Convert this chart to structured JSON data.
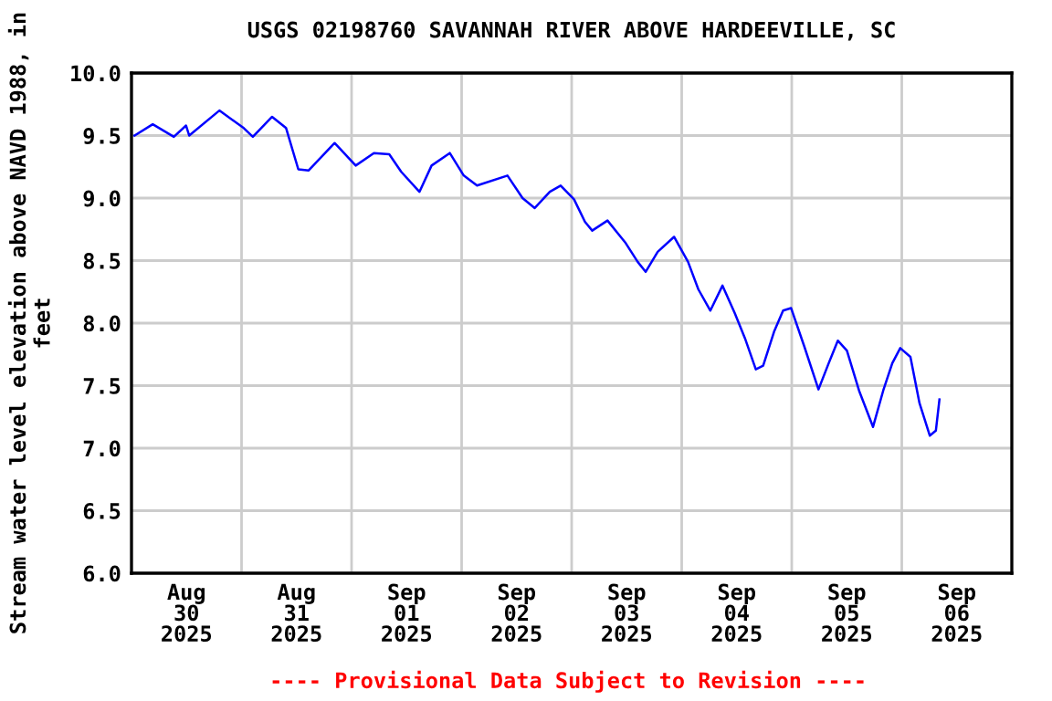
{
  "chart_data": {
    "type": "line",
    "title": "USGS 02198760 SAVANNAH RIVER ABOVE HARDEEVILLE, SC",
    "ylabel": "Stream water level elevation above NAVD 1988, in feet",
    "annotations": [
      "---- Provisional Data Subject to Revision ----"
    ],
    "x": [
      "2025-08-30T00:40",
      "2025-08-30T04:38",
      "2025-08-30T09:14",
      "2025-08-30T11:54",
      "2025-08-30T12:35",
      "2025-08-30T19:10",
      "2025-08-31T00:29",
      "2025-08-31T02:28",
      "2025-08-31T06:40",
      "2025-08-31T09:43",
      "2025-08-31T12:23",
      "2025-08-31T14:36",
      "2025-08-31T20:18",
      "2025-09-01T00:54",
      "2025-09-01T04:52",
      "2025-09-01T08:13",
      "2025-09-01T10:50",
      "2025-09-01T14:48",
      "2025-09-01T17:27",
      "2025-09-01T21:25",
      "2025-09-02T00:28",
      "2025-09-02T03:22",
      "2025-09-02T10:00",
      "2025-09-02T13:17",
      "2025-09-02T15:57",
      "2025-09-02T19:14",
      "2025-09-02T21:36",
      "2025-09-03T00:31",
      "2025-09-03T02:54",
      "2025-09-03T04:29",
      "2025-09-03T07:49",
      "2025-09-03T11:47",
      "2025-09-03T14:24",
      "2025-09-03T16:08",
      "2025-09-03T18:46",
      "2025-09-03T22:20",
      "2025-09-04T01:23",
      "2025-09-04T03:38",
      "2025-09-04T06:15",
      "2025-09-04T08:54",
      "2025-09-04T11:34",
      "2025-09-04T13:47",
      "2025-09-04T16:10",
      "2025-09-04T17:46",
      "2025-09-04T20:08",
      "2025-09-04T22:07",
      "2025-09-04T23:52",
      "2025-09-05T02:46",
      "2025-09-05T05:50",
      "2025-09-05T08:04",
      "2025-09-05T10:03",
      "2025-09-05T12:02",
      "2025-09-05T14:41",
      "2025-09-05T17:44",
      "2025-09-05T19:57",
      "2025-09-05T21:56",
      "2025-09-05T23:40",
      "2025-09-06T01:53",
      "2025-09-06T03:52",
      "2025-09-06T06:07",
      "2025-09-06T07:26",
      "2025-09-06T08:13"
    ],
    "series": [
      {
        "color": "#0000ff",
        "values": [
          9.5,
          9.59,
          9.49,
          9.58,
          9.5,
          9.7,
          9.56,
          9.49,
          9.65,
          9.56,
          9.23,
          9.22,
          9.44,
          9.26,
          9.36,
          9.35,
          9.21,
          9.05,
          9.26,
          9.36,
          9.18,
          9.1,
          9.18,
          9.0,
          8.92,
          9.05,
          9.1,
          8.99,
          8.81,
          8.74,
          8.82,
          8.64,
          8.49,
          8.41,
          8.57,
          8.69,
          8.49,
          8.27,
          8.1,
          8.3,
          8.08,
          7.88,
          7.63,
          7.66,
          7.93,
          8.1,
          8.12,
          7.81,
          7.47,
          7.68,
          7.86,
          7.78,
          7.46,
          7.17,
          7.46,
          7.68,
          7.8,
          7.73,
          7.36,
          7.1,
          7.14,
          7.39
        ]
      }
    ],
    "xlim": [
      "2025-08-30T00:00",
      "2025-09-07T00:00"
    ],
    "xticks": [
      {
        "value": "2025-08-30T12:00",
        "label": "Aug\n30\n2025"
      },
      {
        "value": "2025-08-31T00:00",
        "label": null
      },
      {
        "value": "2025-08-31T12:00",
        "label": "Aug\n31\n2025"
      },
      {
        "value": "2025-09-01T00:00",
        "label": null
      },
      {
        "value": "2025-09-01T12:00",
        "label": "Sep\n01\n2025"
      },
      {
        "value": "2025-09-02T00:00",
        "label": null
      },
      {
        "value": "2025-09-02T12:00",
        "label": "Sep\n02\n2025"
      },
      {
        "value": "2025-09-03T00:00",
        "label": null
      },
      {
        "value": "2025-09-03T12:00",
        "label": "Sep\n03\n2025"
      },
      {
        "value": "2025-09-04T00:00",
        "label": null
      },
      {
        "value": "2025-09-04T12:00",
        "label": "Sep\n04\n2025"
      },
      {
        "value": "2025-09-05T00:00",
        "label": null
      },
      {
        "value": "2025-09-05T12:00",
        "label": "Sep\n05\n2025"
      },
      {
        "value": "2025-09-06T00:00",
        "label": null
      },
      {
        "value": "2025-09-06T12:00",
        "label": "Sep\n06\n2025"
      }
    ],
    "ylim": [
      6,
      10
    ],
    "yticks": [
      {
        "value": 6,
        "label": "6.0"
      },
      {
        "value": 6.5,
        "label": "6.5"
      },
      {
        "value": 7,
        "label": "7.0"
      },
      {
        "value": 7.5,
        "label": "7.5"
      },
      {
        "value": 8,
        "label": "8.0"
      },
      {
        "value": 8.5,
        "label": "8.5"
      },
      {
        "value": 9,
        "label": "9.0"
      },
      {
        "value": 9.5,
        "label": "9.5"
      },
      {
        "value": 10,
        "label": "10.0"
      }
    ],
    "grid": true,
    "line_style": "solid"
  }
}
